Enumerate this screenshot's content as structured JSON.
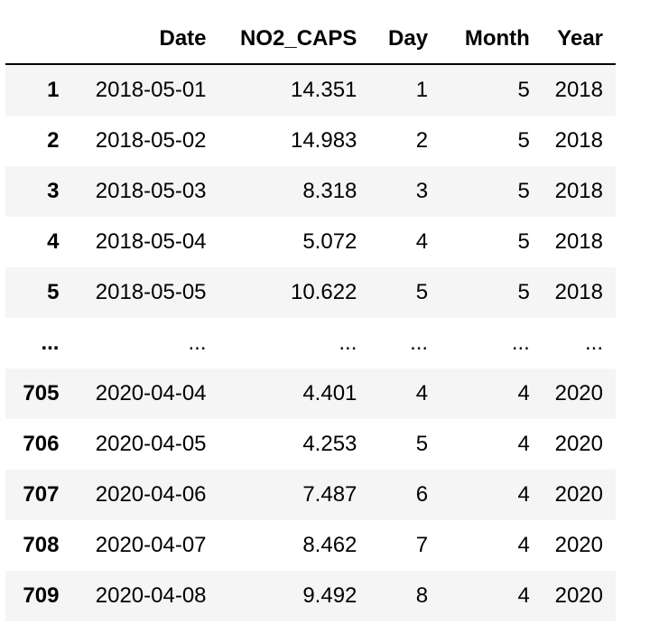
{
  "table": {
    "columns": [
      "",
      "Date",
      "NO2_CAPS",
      "Day",
      "Month",
      "Year"
    ],
    "rows": [
      {
        "index": "1",
        "cells": [
          "2018-05-01",
          "14.351",
          "1",
          "5",
          "2018"
        ]
      },
      {
        "index": "2",
        "cells": [
          "2018-05-02",
          "14.983",
          "2",
          "5",
          "2018"
        ]
      },
      {
        "index": "3",
        "cells": [
          "2018-05-03",
          "8.318",
          "3",
          "5",
          "2018"
        ]
      },
      {
        "index": "4",
        "cells": [
          "2018-05-04",
          "5.072",
          "4",
          "5",
          "2018"
        ]
      },
      {
        "index": "5",
        "cells": [
          "2018-05-05",
          "10.622",
          "5",
          "5",
          "2018"
        ]
      },
      {
        "index": "...",
        "cells": [
          "...",
          "...",
          "...",
          "...",
          "..."
        ]
      },
      {
        "index": "705",
        "cells": [
          "2020-04-04",
          "4.401",
          "4",
          "4",
          "2020"
        ]
      },
      {
        "index": "706",
        "cells": [
          "2020-04-05",
          "4.253",
          "5",
          "4",
          "2020"
        ]
      },
      {
        "index": "707",
        "cells": [
          "2020-04-06",
          "7.487",
          "6",
          "4",
          "2020"
        ]
      },
      {
        "index": "708",
        "cells": [
          "2020-04-07",
          "8.462",
          "7",
          "4",
          "2020"
        ]
      },
      {
        "index": "709",
        "cells": [
          "2020-04-08",
          "9.492",
          "8",
          "4",
          "2020"
        ]
      }
    ]
  }
}
